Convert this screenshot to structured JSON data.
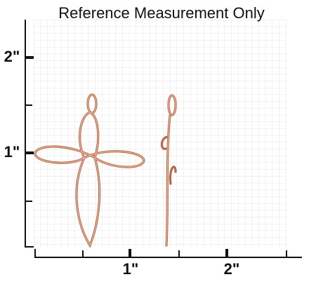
{
  "title": "Reference Measurement Only",
  "y_axis": {
    "labels": [
      "2\"",
      "1\""
    ]
  },
  "x_axis": {
    "labels": [
      "1\"",
      "2\""
    ]
  }
}
